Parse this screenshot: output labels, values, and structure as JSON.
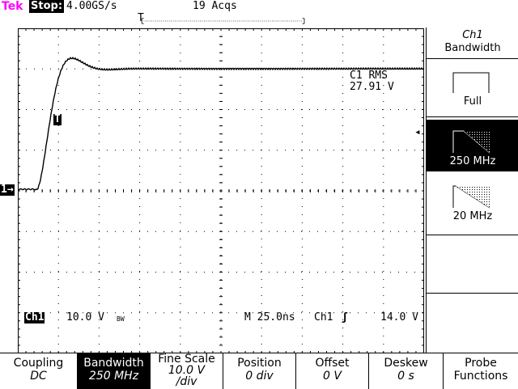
{
  "header": {
    "brand": "Tek",
    "state": "Stop:",
    "sample_rate": "4.00GS/s",
    "acquisitions": "19 Acqs"
  },
  "record_bar": {
    "trigger_marker": "T"
  },
  "markers": {
    "channel": "1→",
    "trigger_point": "T",
    "trigger_level_arrow": "◂"
  },
  "measurement": {
    "label": "C1 RMS",
    "value": "27.91 V"
  },
  "readout": {
    "channel": "Ch1",
    "scale": "10.0 V",
    "bw_symbol": "BW",
    "timebase": "M 25.0ns",
    "trigger_source": "Ch1",
    "trigger_slope": "ʃ",
    "trigger_level": "14.0 V"
  },
  "side_menu": {
    "title_line1": "Ch1",
    "title_line2": "Bandwidth",
    "options": [
      {
        "label": "Full",
        "icon": "full-bandwidth-icon",
        "selected": false
      },
      {
        "label": "250 MHz",
        "icon": "250mhz-filter-icon",
        "selected": true
      },
      {
        "label": "20 MHz",
        "icon": "20mhz-filter-icon",
        "selected": false
      }
    ]
  },
  "bottom_menu": [
    {
      "label": "Coupling",
      "value": "DC"
    },
    {
      "label": "Bandwidth",
      "value": "250 MHz",
      "selected": true
    },
    {
      "label": "Fine Scale",
      "value": "10.0 V",
      "value2": "/div"
    },
    {
      "label": "Position",
      "value": "0 div"
    },
    {
      "label": "Offset",
      "value": "0 V"
    },
    {
      "label": "Deskew",
      "value": "0 s"
    },
    {
      "label": "Probe",
      "value": "Functions"
    }
  ],
  "colors": {
    "brand": "#ff00ff",
    "trace": "#000000",
    "background": "#ffffff"
  }
}
